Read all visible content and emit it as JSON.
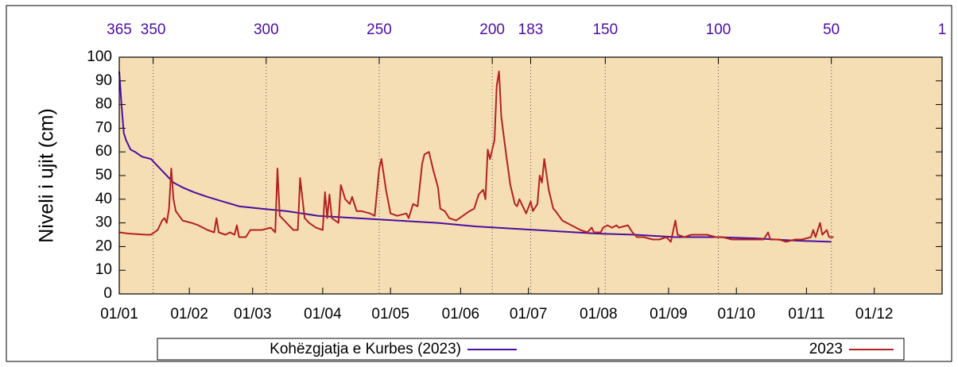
{
  "chart_data": {
    "type": "line",
    "ylabel": "Niveli i ujit (cm)",
    "xlim": [
      0,
      364
    ],
    "xticks": [
      {
        "value": 0,
        "label": "01/01"
      },
      {
        "value": 31,
        "label": "01/02"
      },
      {
        "value": 59,
        "label": "01/03"
      },
      {
        "value": 90,
        "label": "01/04"
      },
      {
        "value": 120,
        "label": "01/05"
      },
      {
        "value": 151,
        "label": "01/06"
      },
      {
        "value": 181,
        "label": "01/07"
      },
      {
        "value": 212,
        "label": "01/08"
      },
      {
        "value": 243,
        "label": "01/09"
      },
      {
        "value": 273,
        "label": "01/10"
      },
      {
        "value": 304,
        "label": "01/11"
      },
      {
        "value": 334,
        "label": "01/12"
      }
    ],
    "x2lim": [
      365,
      1
    ],
    "x2ticks": [
      365,
      350,
      300,
      250,
      200,
      183,
      150,
      100,
      50,
      1
    ],
    "ylim": [
      0,
      100
    ],
    "yticks": [
      0,
      10,
      20,
      30,
      40,
      50,
      60,
      70,
      80,
      90,
      100
    ],
    "grid": "x2",
    "background": "#f5deb3",
    "series": [
      {
        "name": "Kohëzgjatja e Kurbes (2023)",
        "color": "#4b0ea0",
        "x": [
          0,
          1,
          2,
          3,
          5,
          7,
          10,
          14,
          17,
          21,
          24,
          28,
          33,
          39,
          46,
          53,
          63,
          74,
          88,
          105,
          123,
          141,
          158,
          176,
          193,
          211,
          228,
          246,
          264,
          281,
          299,
          315
        ],
        "values": [
          94,
          80,
          68,
          65,
          61,
          60,
          58,
          57,
          54,
          50,
          47,
          45,
          43,
          41,
          39,
          37,
          36,
          35,
          33,
          32,
          31,
          30,
          28.5,
          27.5,
          26.5,
          25.5,
          25,
          24,
          24,
          23.5,
          22.5,
          22
        ]
      },
      {
        "name": "2023",
        "color": "#b22222",
        "x": [
          0,
          4,
          12,
          14,
          17,
          19,
          20,
          21,
          22,
          23,
          24,
          25,
          28,
          32,
          35,
          39,
          42,
          43,
          44,
          47,
          49,
          51,
          52,
          53,
          56,
          58,
          63,
          67,
          69,
          70,
          71,
          74,
          77,
          79,
          80,
          82,
          84,
          87,
          90,
          91,
          92,
          93,
          94,
          97,
          98,
          100,
          102,
          103,
          105,
          107,
          111,
          113,
          115,
          116,
          118,
          120,
          123,
          127,
          128,
          130,
          132,
          134,
          135,
          137,
          139,
          141,
          142,
          144,
          146,
          149,
          152,
          155,
          157,
          159,
          161,
          162,
          163,
          164,
          166,
          167,
          168,
          169,
          171,
          173,
          175,
          176,
          177,
          179,
          180,
          182,
          183,
          185,
          186,
          187,
          188,
          190,
          192,
          193,
          196,
          198,
          200,
          204,
          207,
          209,
          210,
          213,
          214,
          216,
          218,
          220,
          221,
          225,
          227,
          229,
          232,
          236,
          239,
          242,
          244,
          246,
          247,
          250,
          253,
          257,
          260,
          264,
          267,
          271,
          274,
          278,
          281,
          285,
          287,
          288,
          292,
          295,
          299,
          302,
          306,
          307,
          308,
          310,
          311,
          313,
          314,
          316
        ],
        "values": [
          26,
          25.5,
          25,
          25,
          27,
          31,
          32,
          30,
          36,
          53,
          40,
          35,
          31,
          30,
          29,
          27,
          26,
          32,
          26,
          25,
          26,
          25,
          29,
          24,
          24,
          27,
          27,
          28,
          26,
          53,
          33,
          30,
          27,
          27,
          49,
          32,
          30,
          28,
          27,
          43,
          32,
          42,
          32,
          30,
          46,
          40,
          38,
          41,
          35,
          35,
          34,
          33,
          53,
          57,
          44,
          34,
          33,
          34,
          32,
          38,
          37,
          55,
          59,
          60,
          52,
          45,
          36,
          35,
          32,
          31,
          33,
          35,
          36,
          42,
          44,
          40,
          61,
          57,
          65,
          88,
          94,
          75,
          60,
          46,
          38,
          37,
          40,
          36,
          34,
          39,
          35,
          38,
          50,
          47,
          57,
          44,
          36,
          35,
          31,
          30,
          29,
          27,
          26,
          28,
          26,
          26,
          28,
          29,
          28,
          29,
          28,
          29,
          26,
          24,
          24,
          23,
          23,
          24,
          22,
          31,
          25,
          24,
          25,
          25,
          25,
          24,
          24,
          23,
          23,
          23,
          23,
          23,
          26,
          23,
          23,
          22,
          23,
          23,
          24,
          27,
          24,
          30,
          25,
          27,
          24,
          24
        ]
      }
    ]
  }
}
